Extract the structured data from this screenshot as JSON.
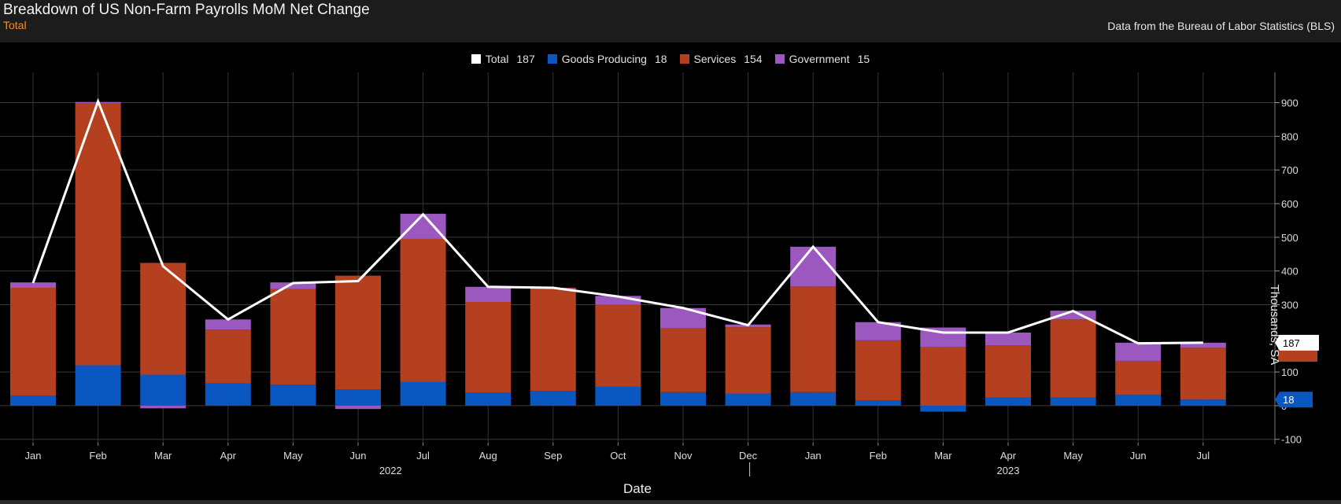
{
  "header": {
    "title": "Breakdown of US Non-Farm Payrolls MoM Net Change",
    "subtitle": "Total",
    "source": "Data from the Bureau of Labor Statistics (BLS)"
  },
  "legend": [
    {
      "label": "Total",
      "value": "187",
      "color": "#ffffff"
    },
    {
      "label": "Goods Producing",
      "value": "18",
      "color": "#0a57c2"
    },
    {
      "label": "Services",
      "value": "154",
      "color": "#b5401f"
    },
    {
      "label": "Government",
      "value": "15",
      "color": "#9b59c0"
    }
  ],
  "chart_data": {
    "type": "bar",
    "stacked": true,
    "title": "Breakdown of US Non-Farm Payrolls MoM Net Change",
    "subtitle": "Total",
    "xlabel": "Date",
    "ylabel": "Thousands, SA",
    "ylim": [
      -110,
      990
    ],
    "yticks": [
      -100,
      0,
      100,
      187,
      300,
      400,
      500,
      600,
      700,
      800,
      900
    ],
    "categories": [
      "Jan",
      "Feb",
      "Mar",
      "Apr",
      "May",
      "Jun",
      "Jul",
      "Aug",
      "Sep",
      "Oct",
      "Nov",
      "Dec",
      "Jan",
      "Feb",
      "Mar",
      "Apr",
      "May",
      "Jun",
      "Jul"
    ],
    "year_labels": [
      {
        "label": "2022",
        "at_index": 5.5
      },
      {
        "label": "2023",
        "at_index": 15
      }
    ],
    "year_divider_after_index": 11,
    "series": [
      {
        "name": "Goods Producing",
        "color": "#0a57c2",
        "values": [
          30,
          120,
          92,
          66,
          62,
          48,
          70,
          38,
          44,
          56,
          40,
          36,
          40,
          16,
          -18,
          24,
          24,
          32,
          18
        ]
      },
      {
        "name": "Services",
        "color": "#b5401f",
        "values": [
          320,
          778,
          332,
          160,
          284,
          338,
          425,
          270,
          306,
          244,
          190,
          197,
          314,
          178,
          174,
          155,
          232,
          101,
          154
        ]
      },
      {
        "name": "Government",
        "color": "#9b59c0",
        "values": [
          16,
          4,
          -8,
          30,
          20,
          -10,
          75,
          45,
          0,
          26,
          60,
          8,
          118,
          54,
          58,
          38,
          26,
          54,
          15
        ]
      }
    ],
    "line": {
      "name": "Total",
      "color": "#ffffff",
      "values": [
        364,
        904,
        414,
        256,
        364,
        370,
        568,
        353,
        350,
        324,
        290,
        239,
        472,
        248,
        217,
        217,
        281,
        185,
        187
      ]
    },
    "last_value_labels": [
      {
        "series": "Total",
        "value": "187",
        "bg": "#ffffff",
        "fg": "#000000"
      },
      {
        "series": "Goods Producing",
        "value": "18",
        "bg": "#0a57c2",
        "fg": "#ffffff"
      }
    ],
    "grid": true
  }
}
